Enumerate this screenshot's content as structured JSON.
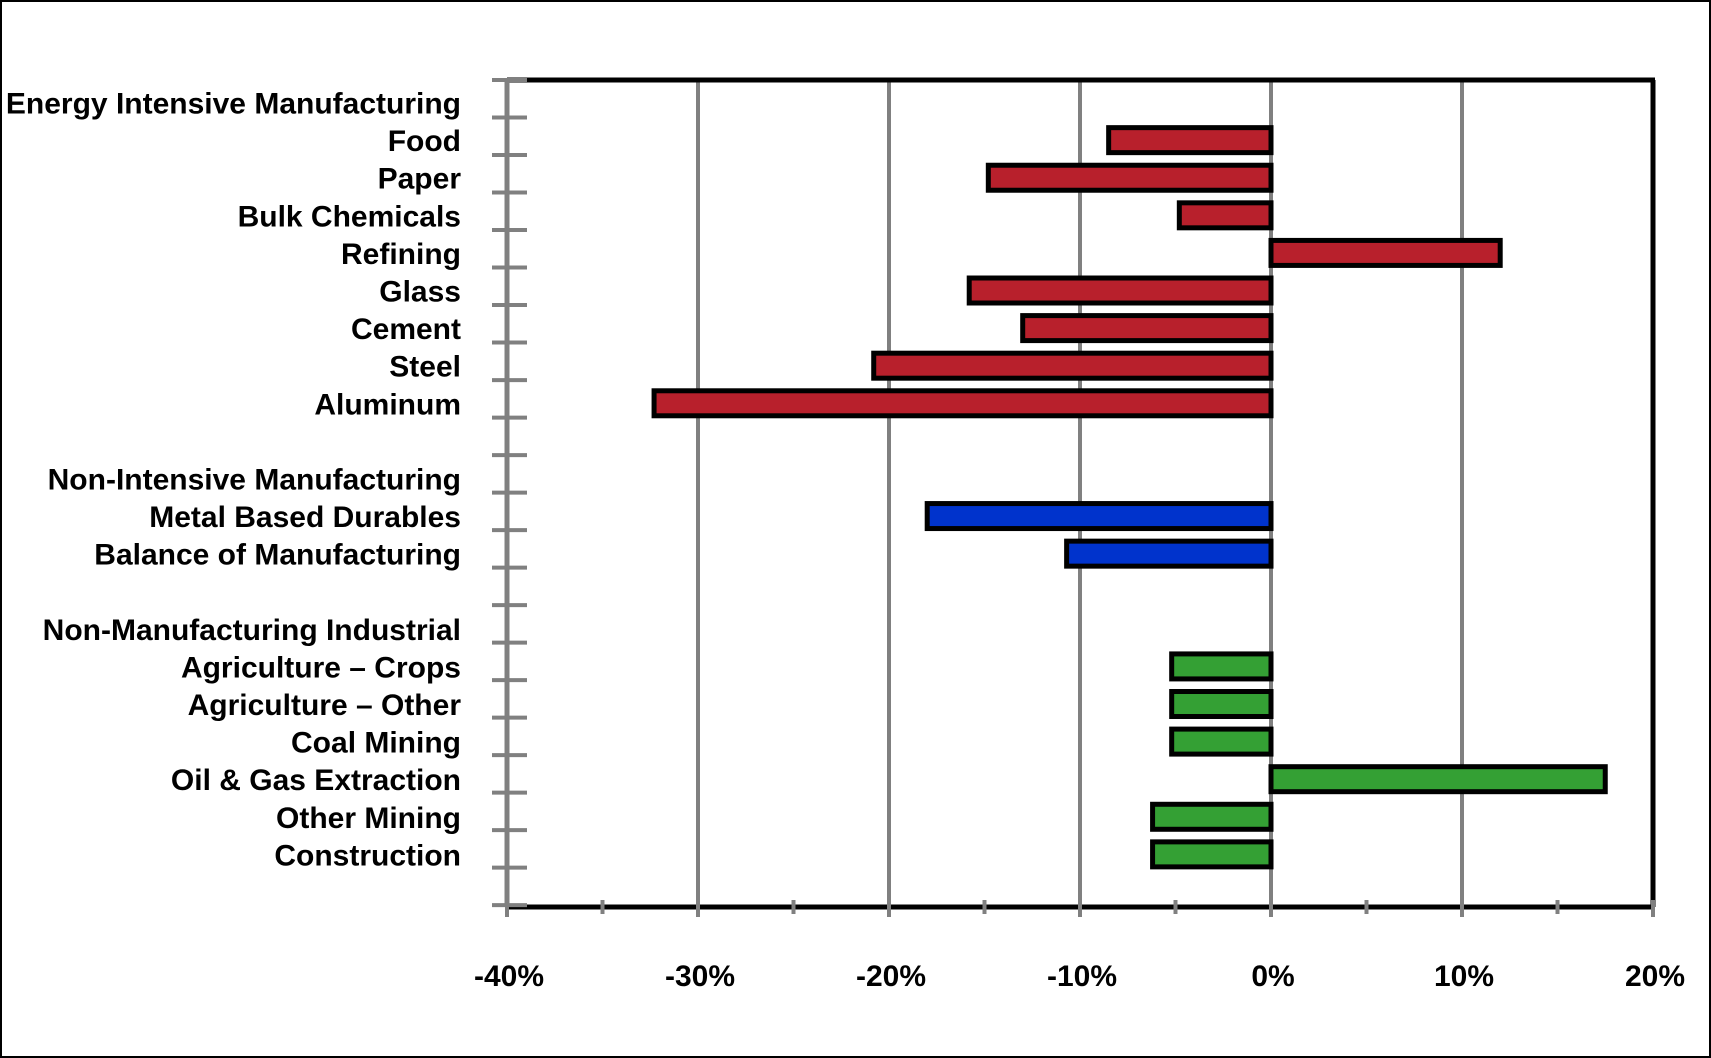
{
  "chart_data": {
    "type": "bar",
    "orientation": "horizontal",
    "categories": [
      "Energy Intensive Manufacturing",
      "Food",
      "Paper",
      "Bulk Chemicals",
      "Refining",
      "Glass",
      "Cement",
      "Steel",
      "Aluminum",
      "",
      "Non-Intensive Manufacturing",
      "Metal Based Durables",
      "Balance of Manufacturing",
      "",
      "Non-Manufacturing Industrial",
      "Agriculture – Crops",
      "Agriculture – Other",
      "Coal Mining",
      "Oil & Gas Extraction",
      "Other Mining",
      "Construction"
    ],
    "values": [
      null,
      -8.5,
      -14.8,
      -4.8,
      12.0,
      -15.8,
      -13.0,
      -20.8,
      -32.3,
      null,
      null,
      -18.0,
      -10.7,
      null,
      null,
      -5.2,
      -5.2,
      -5.2,
      17.5,
      -6.2,
      -6.2
    ],
    "bar_colors": [
      "",
      "#b8202c",
      "#b8202c",
      "#b8202c",
      "#b8202c",
      "#b8202c",
      "#b8202c",
      "#b8202c",
      "#b8202c",
      "",
      "",
      "#0033cc",
      "#0033cc",
      "",
      "",
      "#34a034",
      "#34a034",
      "#34a034",
      "#34a034",
      "#34a034",
      "#34a034"
    ],
    "xlim": [
      -40,
      20
    ],
    "xticks": [
      -40,
      -30,
      -20,
      -10,
      0,
      10,
      20
    ],
    "xtick_labels": [
      "-40%",
      "-30%",
      "-20%",
      "-10%",
      "0%",
      "10%",
      "20%"
    ],
    "grid": "vertical",
    "gridline_color": "#808080",
    "bar_outline_color": "#000000",
    "title": "",
    "xlabel": "",
    "ylabel": "",
    "legend": "none"
  }
}
